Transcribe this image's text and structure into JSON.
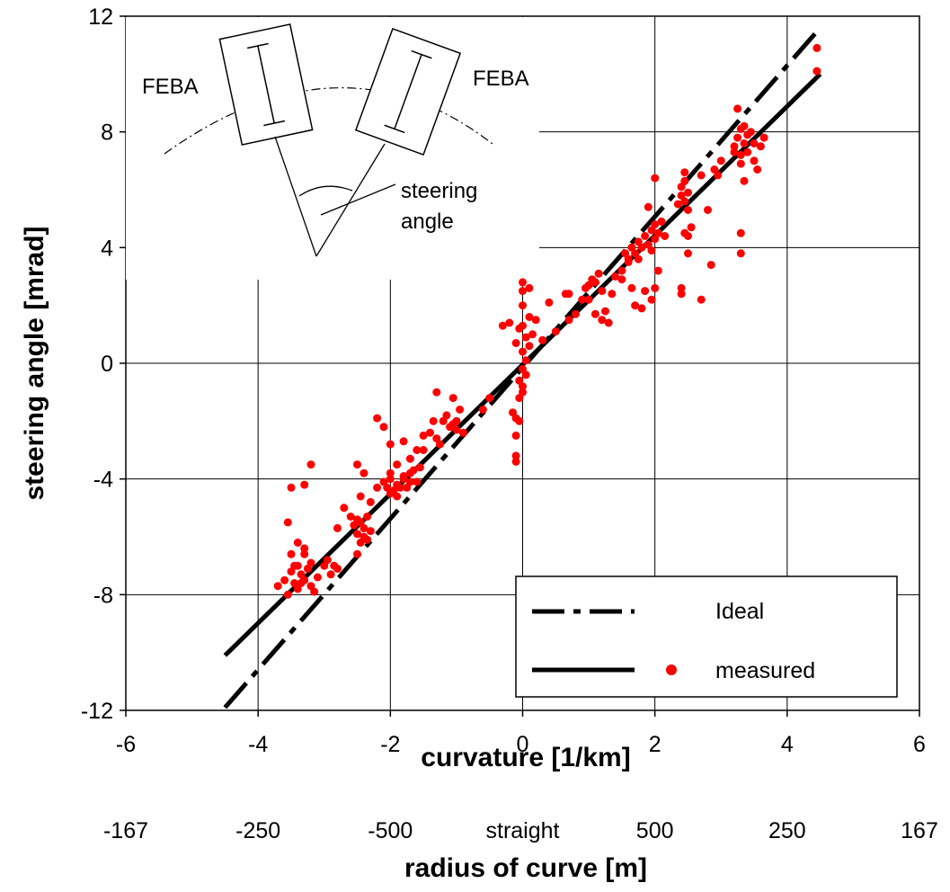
{
  "chart_data": {
    "type": "scatter",
    "xlabel": "curvature [1/km]",
    "ylabel": "steering angle [mrad]",
    "xlim": [
      -6,
      6
    ],
    "ylim": [
      -12,
      12
    ],
    "x_ticks": [
      "-6",
      "-4",
      "-2",
      "0",
      "2",
      "4",
      "6"
    ],
    "y_ticks": [
      "12",
      "8",
      "4",
      "0",
      "-4",
      "-8",
      "-12"
    ],
    "secondary_x_axis": {
      "label": "radius of curve [m]",
      "ticks": [
        "-167",
        "-250",
        "-500",
        "straight",
        "500",
        "250",
        "167"
      ]
    },
    "grid": true,
    "legend": {
      "placement": "bottom-right",
      "entries": [
        "Ideal",
        "measured"
      ]
    },
    "series": [
      {
        "name": "Ideal",
        "style": "dash-dot",
        "color": "#000000",
        "x": [
          -4.5,
          4.5
        ],
        "y": [
          -11.9,
          11.6
        ]
      },
      {
        "name": "measured",
        "style": "solid",
        "color": "#000000",
        "x": [
          -4.5,
          4.5
        ],
        "y": [
          -10.1,
          10.0
        ]
      },
      {
        "name": "measured",
        "style": "points",
        "color": "#ff0000",
        "points": [
          [
            -3.7,
            -7.7
          ],
          [
            -3.6,
            -7.5
          ],
          [
            -3.55,
            -8.0
          ],
          [
            -3.5,
            -7.2
          ],
          [
            -3.45,
            -7.6
          ],
          [
            -3.4,
            -7.0
          ],
          [
            -3.4,
            -7.8
          ],
          [
            -3.35,
            -7.3
          ],
          [
            -3.3,
            -6.6
          ],
          [
            -3.3,
            -7.5
          ],
          [
            -3.25,
            -7.1
          ],
          [
            -3.2,
            -7.7
          ],
          [
            -3.2,
            -6.9
          ],
          [
            -3.15,
            -7.9
          ],
          [
            -3.1,
            -7.4
          ],
          [
            -3.5,
            -6.6
          ],
          [
            -3.4,
            -6.2
          ],
          [
            -3.3,
            -6.4
          ],
          [
            -3.55,
            -5.5
          ],
          [
            -3.5,
            -4.3
          ],
          [
            -3.3,
            -4.2
          ],
          [
            -3.2,
            -3.5
          ],
          [
            -3.45,
            -7.0
          ],
          [
            -3.35,
            -7.6
          ],
          [
            -3.0,
            -7.0
          ],
          [
            -2.95,
            -6.8
          ],
          [
            -2.9,
            -7.3
          ],
          [
            -2.85,
            -7.0
          ],
          [
            -2.8,
            -7.1
          ],
          [
            -2.8,
            -5.7
          ],
          [
            -2.7,
            -5.0
          ],
          [
            -2.6,
            -5.3
          ],
          [
            -2.55,
            -5.6
          ],
          [
            -2.5,
            -5.9
          ],
          [
            -2.5,
            -5.4
          ],
          [
            -2.45,
            -5.5
          ],
          [
            -2.45,
            -6.2
          ],
          [
            -2.4,
            -5.7
          ],
          [
            -2.4,
            -6.0
          ],
          [
            -2.35,
            -5.3
          ],
          [
            -2.35,
            -6.1
          ],
          [
            -2.3,
            -5.8
          ],
          [
            -2.5,
            -6.6
          ],
          [
            -2.5,
            -3.5
          ],
          [
            -2.4,
            -3.8
          ],
          [
            -2.3,
            -4.8
          ],
          [
            -2.2,
            -1.9
          ],
          [
            -2.1,
            -2.2
          ],
          [
            -2.0,
            -2.8
          ],
          [
            -2.2,
            -4.3
          ],
          [
            -2.45,
            -4.6
          ],
          [
            -2.1,
            -4.1
          ],
          [
            -2.05,
            -4.3
          ],
          [
            -2.0,
            -4.5
          ],
          [
            -2.0,
            -4.0
          ],
          [
            -1.95,
            -4.4
          ],
          [
            -1.9,
            -4.2
          ],
          [
            -1.9,
            -4.6
          ],
          [
            -1.85,
            -4.3
          ],
          [
            -1.8,
            -4.0
          ],
          [
            -1.8,
            -3.9
          ],
          [
            -1.75,
            -4.3
          ],
          [
            -1.7,
            -4.1
          ],
          [
            -1.7,
            -3.8
          ],
          [
            -1.65,
            -3.7
          ],
          [
            -1.6,
            -4.1
          ],
          [
            -1.9,
            -3.5
          ],
          [
            -2.0,
            -3.8
          ],
          [
            -1.8,
            -2.7
          ],
          [
            -1.7,
            -3.3
          ],
          [
            -1.6,
            -3.0
          ],
          [
            -1.5,
            -3.0
          ],
          [
            -1.55,
            -3.6
          ],
          [
            -1.5,
            -2.5
          ],
          [
            -1.4,
            -2.4
          ],
          [
            -1.35,
            -2.0
          ],
          [
            -1.3,
            -2.6
          ],
          [
            -1.3,
            -1.0
          ],
          [
            -1.2,
            -2.0
          ],
          [
            -1.15,
            -1.8
          ],
          [
            -1.1,
            -2.2
          ],
          [
            -1.05,
            -2.1
          ],
          [
            -1.0,
            -2.0
          ],
          [
            -1.0,
            -2.3
          ],
          [
            -0.95,
            -1.6
          ],
          [
            -1.05,
            -1.2
          ],
          [
            -0.9,
            -2.4
          ],
          [
            -1.25,
            -2.8
          ],
          [
            -0.5,
            -1.2
          ],
          [
            -0.6,
            -1.6
          ],
          [
            -0.15,
            -1.7
          ],
          [
            -0.1,
            -1.9
          ],
          [
            -0.1,
            -2.5
          ],
          [
            -0.1,
            -3.2
          ],
          [
            -0.1,
            -3.4
          ],
          [
            -0.05,
            -0.6
          ],
          [
            -0.05,
            -1.2
          ],
          [
            -0.05,
            -2.0
          ],
          [
            0.0,
            -0.2
          ],
          [
            0.0,
            0.4
          ],
          [
            0.0,
            -0.8
          ],
          [
            0.0,
            -1.0
          ],
          [
            0.0,
            1.3
          ],
          [
            0.0,
            2.0
          ],
          [
            0.0,
            2.5
          ],
          [
            0.0,
            2.8
          ],
          [
            0.05,
            0.9
          ],
          [
            0.05,
            0.1
          ],
          [
            0.05,
            -0.4
          ],
          [
            0.1,
            2.6
          ],
          [
            0.1,
            1.6
          ],
          [
            0.1,
            0.6
          ],
          [
            0.15,
            1.0
          ],
          [
            -0.2,
            1.4
          ],
          [
            -0.3,
            1.3
          ],
          [
            0.2,
            1.5
          ],
          [
            0.3,
            0.8
          ],
          [
            0.4,
            2.1
          ],
          [
            0.5,
            1.1
          ],
          [
            0.65,
            2.4
          ],
          [
            -0.05,
            1.2
          ],
          [
            -0.1,
            0.7
          ],
          [
            0.7,
            1.5
          ],
          [
            0.8,
            1.7
          ],
          [
            0.9,
            2.2
          ],
          [
            0.95,
            2.6
          ],
          [
            1.0,
            2.7
          ],
          [
            1.05,
            2.9
          ],
          [
            1.1,
            2.8
          ],
          [
            1.15,
            3.1
          ],
          [
            1.2,
            2.5
          ],
          [
            1.25,
            1.8
          ],
          [
            1.3,
            1.4
          ],
          [
            1.35,
            2.4
          ],
          [
            1.4,
            3.0
          ],
          [
            1.5,
            2.9
          ],
          [
            1.5,
            3.2
          ],
          [
            1.6,
            3.5
          ],
          [
            1.55,
            3.8
          ],
          [
            1.1,
            1.7
          ],
          [
            1.2,
            1.5
          ],
          [
            1.0,
            2.2
          ],
          [
            0.7,
            2.4
          ],
          [
            1.6,
            3.6
          ],
          [
            1.65,
            4.0
          ],
          [
            1.7,
            3.8
          ],
          [
            1.75,
            4.2
          ],
          [
            1.8,
            4.0
          ],
          [
            1.85,
            4.4
          ],
          [
            1.9,
            4.1
          ],
          [
            1.95,
            4.6
          ],
          [
            2.0,
            4.3
          ],
          [
            2.0,
            4.8
          ],
          [
            2.05,
            4.5
          ],
          [
            2.1,
            4.9
          ],
          [
            2.15,
            4.4
          ],
          [
            2.0,
            6.4
          ],
          [
            1.9,
            5.4
          ],
          [
            2.05,
            3.2
          ],
          [
            2.0,
            2.6
          ],
          [
            1.95,
            2.2
          ],
          [
            1.8,
            1.9
          ],
          [
            1.85,
            2.5
          ],
          [
            1.7,
            2.0
          ],
          [
            1.65,
            2.6
          ],
          [
            1.75,
            3.6
          ],
          [
            1.95,
            3.9
          ],
          [
            2.35,
            5.5
          ],
          [
            2.4,
            5.8
          ],
          [
            2.4,
            6.1
          ],
          [
            2.45,
            5.6
          ],
          [
            2.45,
            6.3
          ],
          [
            2.5,
            5.9
          ],
          [
            2.5,
            5.3
          ],
          [
            2.5,
            4.4
          ],
          [
            2.45,
            4.5
          ],
          [
            2.5,
            3.8
          ],
          [
            2.4,
            2.6
          ],
          [
            2.4,
            2.4
          ],
          [
            2.55,
            4.7
          ],
          [
            2.45,
            6.6
          ],
          [
            2.7,
            2.2
          ],
          [
            2.85,
            3.4
          ],
          [
            2.8,
            5.3
          ],
          [
            2.9,
            6.7
          ],
          [
            2.95,
            6.5
          ],
          [
            3.0,
            7.0
          ],
          [
            2.7,
            6.5
          ],
          [
            3.2,
            7.5
          ],
          [
            3.25,
            7.8
          ],
          [
            3.3,
            7.2
          ],
          [
            3.3,
            8.1
          ],
          [
            3.35,
            7.6
          ],
          [
            3.4,
            7.9
          ],
          [
            3.4,
            7.3
          ],
          [
            3.45,
            8.0
          ],
          [
            3.5,
            7.6
          ],
          [
            3.5,
            7.0
          ],
          [
            3.25,
            8.8
          ],
          [
            3.3,
            6.9
          ],
          [
            3.35,
            6.3
          ],
          [
            3.3,
            4.5
          ],
          [
            3.3,
            3.8
          ],
          [
            3.55,
            6.7
          ],
          [
            3.6,
            7.5
          ],
          [
            3.65,
            7.8
          ],
          [
            3.35,
            8.2
          ],
          [
            3.2,
            7.3
          ],
          [
            4.45,
            10.9
          ],
          [
            4.45,
            10.1
          ]
        ]
      }
    ]
  },
  "inset": {
    "label_left": "FEBA",
    "label_right": "FEBA",
    "angle_label_line1": "steering",
    "angle_label_line2": "angle"
  }
}
